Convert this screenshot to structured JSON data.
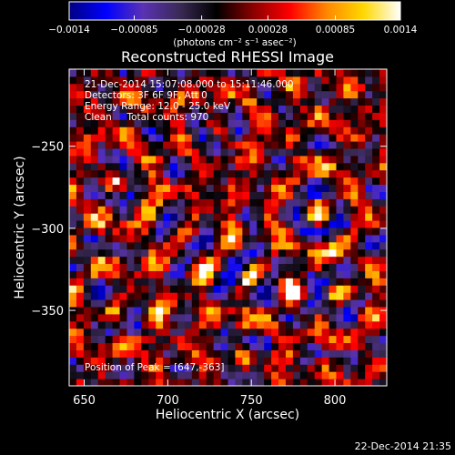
{
  "colorbar": {
    "tick_labels": [
      "−0.0014",
      "−0.00085",
      "−0.00028",
      "0.00028",
      "0.00085",
      "0.0014"
    ],
    "tick_values": [
      -0.0014,
      -0.00085,
      -0.00028,
      0.00028,
      0.00085,
      0.0014
    ],
    "units": "(photons cm⁻² s⁻¹ asec⁻²)",
    "range": [
      -0.0014,
      0.0014
    ],
    "colormap": [
      "#000080",
      "#0000ff",
      "#5a32b4",
      "#3a2a55",
      "#000000",
      "#8a0000",
      "#ff0000",
      "#ff8800",
      "#ffd800",
      "#ffffff"
    ]
  },
  "chart_data": {
    "type": "heatmap",
    "title": "Reconstructed RHESSI Image",
    "xlabel": "Heliocentric X (arcsec)",
    "ylabel": "Heliocentric Y (arcsec)",
    "xlim": [
      641,
      831
    ],
    "ylim": [
      -396,
      -203
    ],
    "x_ticks": [
      650,
      700,
      750,
      800
    ],
    "x_tick_labels": [
      "650",
      "700",
      "750",
      "800"
    ],
    "y_ticks": [
      -250,
      -300,
      -350
    ],
    "y_tick_labels": [
      "−250",
      "−300",
      "−350"
    ],
    "grid": false,
    "annotations": [
      "21-Dec-2014 15:07:08.000 to 15:11:46.000",
      "Detectors: 3F 6F 9F, Att 0",
      "Energy Range: 12.0 - 25.0 keV",
      "Clean     Total counts: 970"
    ],
    "peak_label": "Position of Peak = [647,-363]",
    "peak": [
      647,
      -363
    ],
    "value_range": [
      -0.0014,
      0.0014
    ],
    "bright_sources": [
      {
        "x": 712,
        "y": -300
      },
      {
        "x": 668,
        "y": -270
      },
      {
        "x": 748,
        "y": -330
      },
      {
        "x": 800,
        "y": -340
      },
      {
        "x": 790,
        "y": -288
      },
      {
        "x": 745,
        "y": -380
      },
      {
        "x": 668,
        "y": -350
      },
      {
        "x": 730,
        "y": -240
      }
    ]
  },
  "footer": {
    "date": "22-Dec-2014 21:35"
  }
}
